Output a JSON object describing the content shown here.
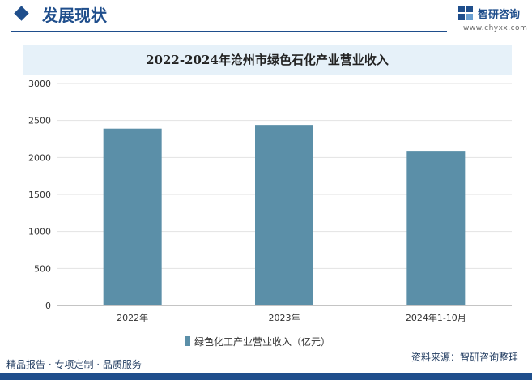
{
  "header": {
    "section_title": "发展现状",
    "brand_name": "智研咨询",
    "brand_url": "www.chyxx.com"
  },
  "footer": {
    "left_text": "精品报告 · 专项定制 · 品质服务",
    "source_text": "资料来源：智研咨询整理"
  },
  "colors": {
    "bar": "#5b8fa8",
    "accent": "#1f4e8c",
    "title_band": "#e6f1f9"
  },
  "chart_data": {
    "type": "bar",
    "title": "2022-2024年沧州市绿色石化产业营业收入",
    "categories": [
      "2022年",
      "2023年",
      "2024年1-10月"
    ],
    "series": [
      {
        "name": "绿色化工产业营业收入（亿元）",
        "values": [
          2390,
          2440,
          2090
        ]
      }
    ],
    "ylim": [
      0,
      3000
    ],
    "yticks": [
      0,
      500,
      1000,
      1500,
      2000,
      2500,
      3000
    ],
    "grid": true,
    "legend": "bottom"
  }
}
